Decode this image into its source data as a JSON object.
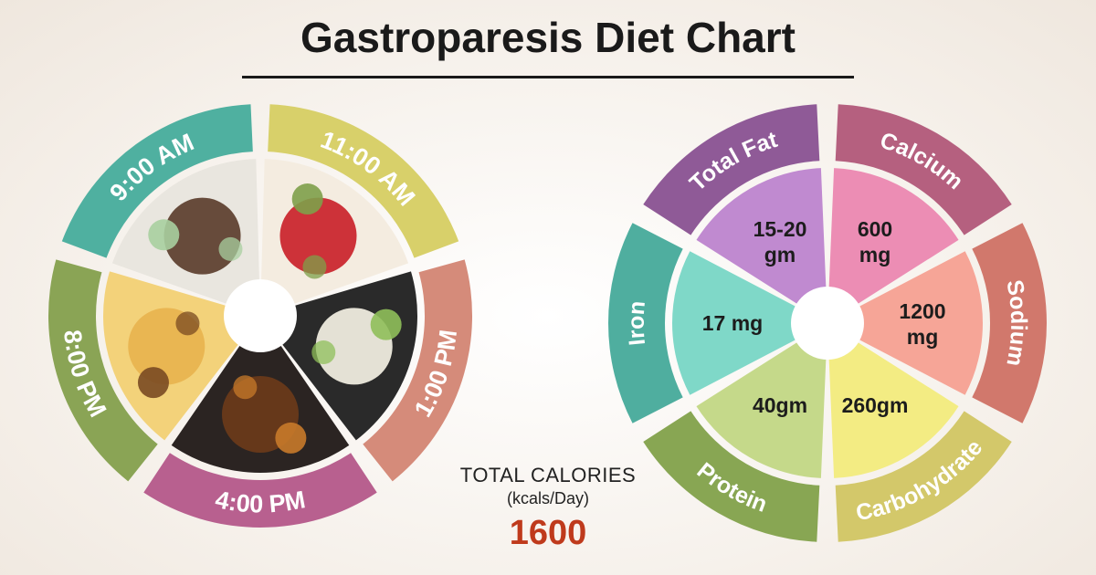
{
  "title": "Gastroparesis Diet Chart",
  "schedule": {
    "times": [
      {
        "label": "11:00 AM",
        "color": "#d8d06a",
        "food": "apples-icon"
      },
      {
        "label": "1:00 PM",
        "color": "#d58b7a",
        "food": "rice-icon"
      },
      {
        "label": "4:00 PM",
        "color": "#b8608f",
        "food": "soup-icon"
      },
      {
        "label": "8:00 PM",
        "color": "#8aa455",
        "food": "dosa-icon"
      },
      {
        "label": "9:00 AM",
        "color": "#4fb0a0",
        "food": "sandwich-icon"
      }
    ]
  },
  "nutrients": {
    "items": [
      {
        "name": "Calcium",
        "value": "600\nmg",
        "outer_color": "#b5607f",
        "inner_color": "#ec8db4"
      },
      {
        "name": "Sodium",
        "value": "1200\nmg",
        "outer_color": "#d1786c",
        "inner_color": "#f6a597"
      },
      {
        "name": "Carbohydrate",
        "value": "260gm",
        "outer_color": "#d3c86a",
        "inner_color": "#f3ec83"
      },
      {
        "name": "Protein",
        "value": "40gm",
        "outer_color": "#88a653",
        "inner_color": "#c5d98a"
      },
      {
        "name": "Iron",
        "value": "17 mg",
        "outer_color": "#4fae9f",
        "inner_color": "#7fd8c8"
      },
      {
        "name": "Total Fat",
        "value": "15-20\ngm",
        "outer_color": "#8f5a97",
        "inner_color": "#c08ad0"
      }
    ]
  },
  "calories": {
    "label": "TOTAL CALORIES",
    "unit": "(kcals/Day)",
    "value": "1600"
  }
}
